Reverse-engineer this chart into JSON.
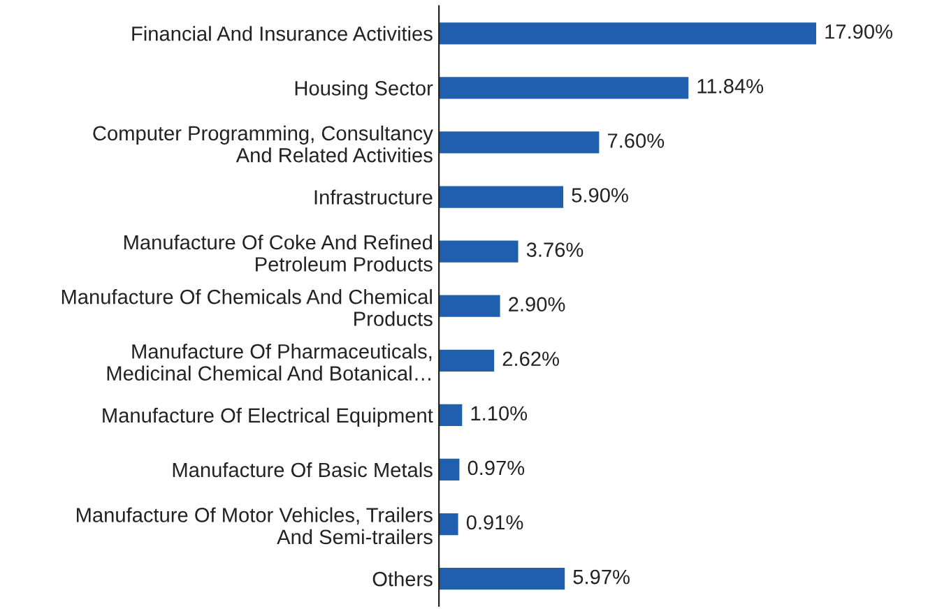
{
  "chart_data": {
    "type": "bar",
    "orientation": "horizontal",
    "categories": [
      "Financial And Insurance Activities",
      "Housing Sector",
      "Computer Programming, Consultancy\nAnd Related Activities",
      "Infrastructure",
      "Manufacture Of Coke And Refined\nPetroleum Products",
      "Manufacture Of Chemicals And Chemical\nProducts",
      "Manufacture Of Pharmaceuticals,\nMedicinal Chemical And Botanical…",
      "Manufacture Of Electrical Equipment",
      "Manufacture Of Basic Metals",
      "Manufacture Of Motor Vehicles, Trailers\nAnd Semi-trailers",
      "Others"
    ],
    "values": [
      17.9,
      11.84,
      7.6,
      5.9,
      3.76,
      2.9,
      2.62,
      1.1,
      0.97,
      0.91,
      5.97
    ],
    "value_labels": [
      "17.90%",
      "11.84%",
      "7.60%",
      "5.90%",
      "3.76%",
      "2.90%",
      "2.62%",
      "1.10%",
      "0.97%",
      "0.91%",
      "5.97%"
    ],
    "color": "#1f5fad",
    "grid": false,
    "legend": false
  }
}
